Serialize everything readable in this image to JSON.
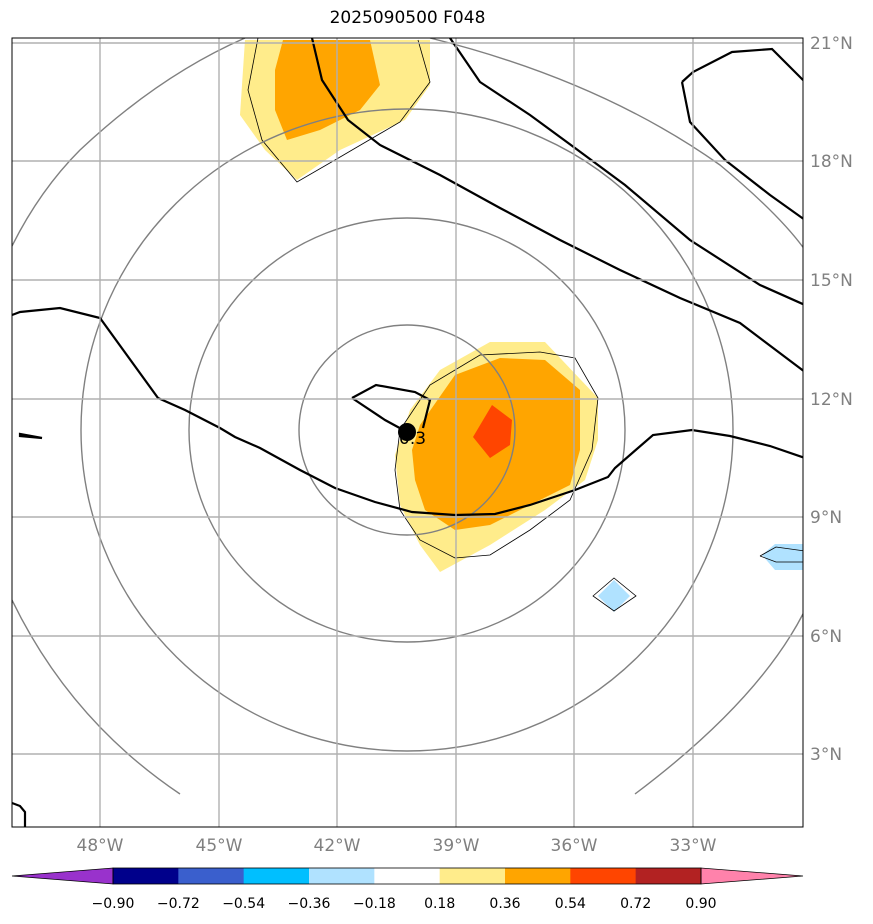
{
  "title": "2025090500 F048",
  "lat_labels": [
    "21°N",
    "18°N",
    "15°N",
    "12°N",
    "9°N",
    "6°N",
    "3°N"
  ],
  "lon_labels": [
    "48°W",
    "45°W",
    "42°W",
    "39°W",
    "36°W",
    "33°W"
  ],
  "colorbar": {
    "labels": [
      "−0.90",
      "−0.72",
      "−0.54",
      "−0.36",
      "−0.18",
      "0.18",
      "0.36",
      "0.54",
      "0.72",
      "0.90"
    ],
    "colors": [
      "#9932cc",
      "#00008b",
      "#3a5fcd",
      "#00bfff",
      "#b0e2ff",
      "#ffffff",
      "#ffec8b",
      "#ffa500",
      "#ff4500",
      "#b22222",
      "#ff82ab"
    ]
  },
  "center_marker": {
    "label": "0.3"
  },
  "shading_colors": {
    "yellow": "#ffec8b",
    "orange": "#ffa500",
    "red": "#ff4500",
    "lightblue": "#b0e2ff"
  }
}
